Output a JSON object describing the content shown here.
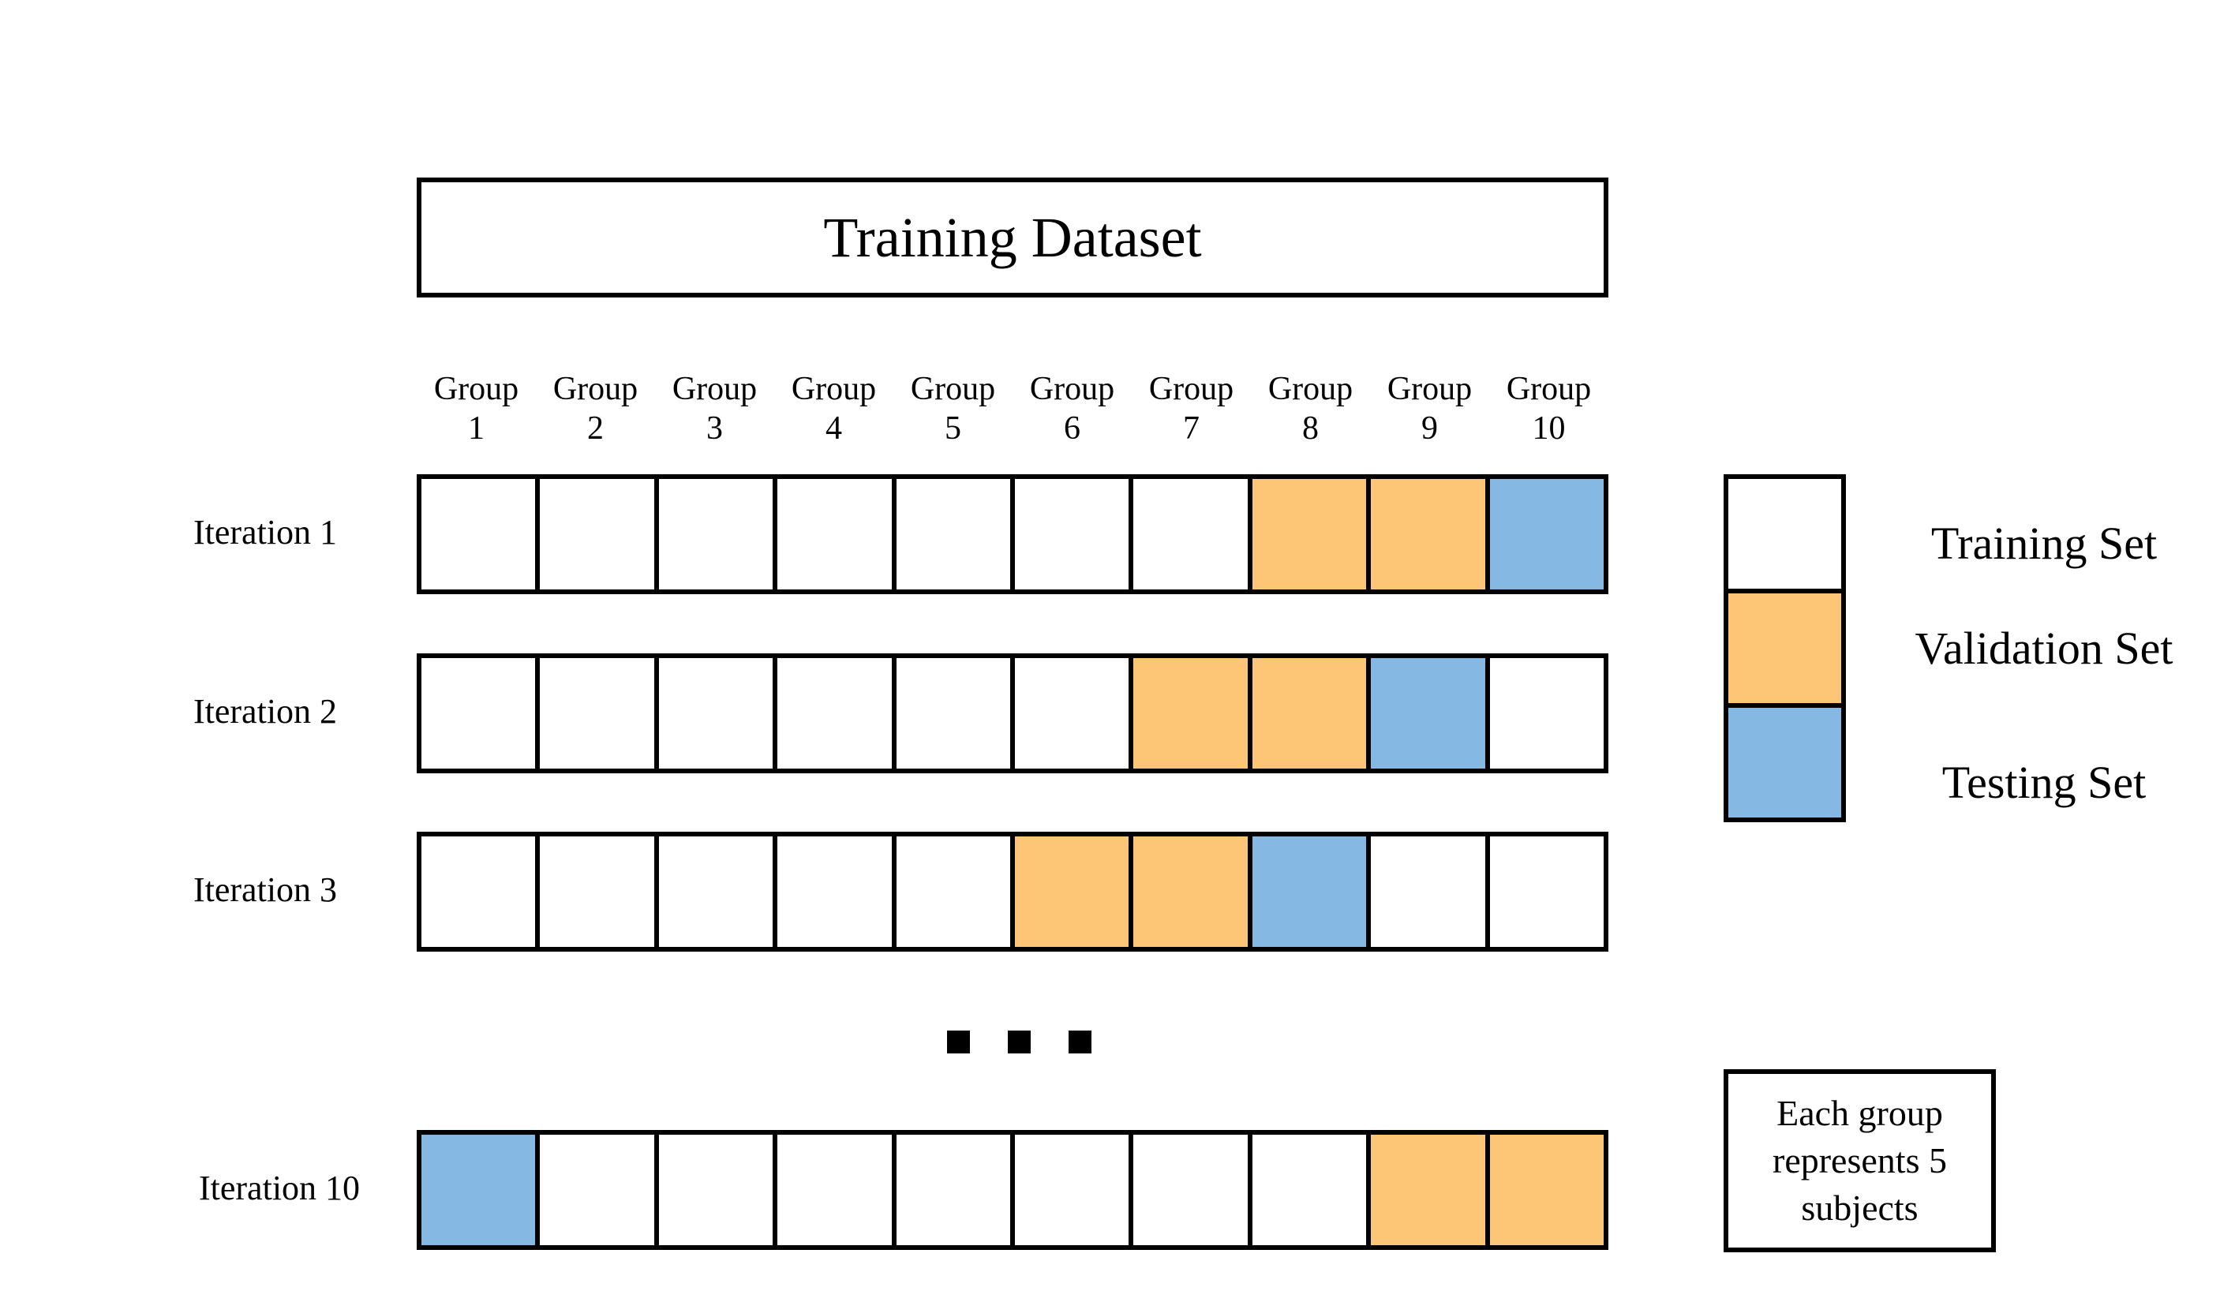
{
  "title": "Training Dataset",
  "groups": [
    "Group\n1",
    "Group\n2",
    "Group\n3",
    "Group\n4",
    "Group\n5",
    "Group\n6",
    "Group\n7",
    "Group\n8",
    "Group\n9",
    "Group\n10"
  ],
  "colors": {
    "train": "#ffffff",
    "val": "#fdc576",
    "test": "#85b9e3"
  },
  "iterations": [
    {
      "label": "Iteration 1",
      "cells": [
        "train",
        "train",
        "train",
        "train",
        "train",
        "train",
        "train",
        "val",
        "val",
        "test"
      ]
    },
    {
      "label": "Iteration 2",
      "cells": [
        "train",
        "train",
        "train",
        "train",
        "train",
        "train",
        "val",
        "val",
        "test",
        "train"
      ]
    },
    {
      "label": "Iteration 3",
      "cells": [
        "train",
        "train",
        "train",
        "train",
        "train",
        "val",
        "val",
        "test",
        "train",
        "train"
      ]
    },
    {
      "label": "Iteration 10",
      "cells": [
        "test",
        "train",
        "train",
        "train",
        "train",
        "train",
        "train",
        "train",
        "val",
        "val"
      ]
    }
  ],
  "legend": {
    "train": "Training Set",
    "val": "Validation Set",
    "test": "Testing Set"
  },
  "note": "Each group represents 5 subjects"
}
